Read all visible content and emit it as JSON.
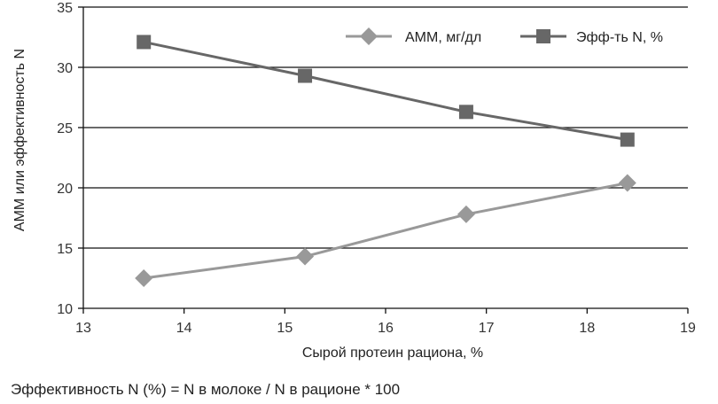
{
  "chart_data": {
    "type": "line",
    "x": [
      13.6,
      15.2,
      16.8,
      18.4
    ],
    "series": [
      {
        "name": "АММ, мг/дл",
        "values": [
          12.5,
          14.3,
          17.8,
          20.4
        ],
        "color": "#999999",
        "marker": "diamond"
      },
      {
        "name": "Эфф-ть N, %",
        "values": [
          32.1,
          29.3,
          26.3,
          24.0
        ],
        "color": "#676767",
        "marker": "square"
      }
    ],
    "xlabel": "Сырой протеин рациона, %",
    "ylabel": "АММ или эффективность N",
    "xlim": [
      13,
      19
    ],
    "ylim": [
      10,
      35
    ],
    "xticks": [
      13,
      14,
      15,
      16,
      17,
      18,
      19
    ],
    "yticks": [
      10,
      15,
      20,
      25,
      30,
      35
    ],
    "grid": "horizontal",
    "legend": "top-right"
  },
  "footnote": "Эффективность N (%) = N в молоке / N в рационе * 100"
}
